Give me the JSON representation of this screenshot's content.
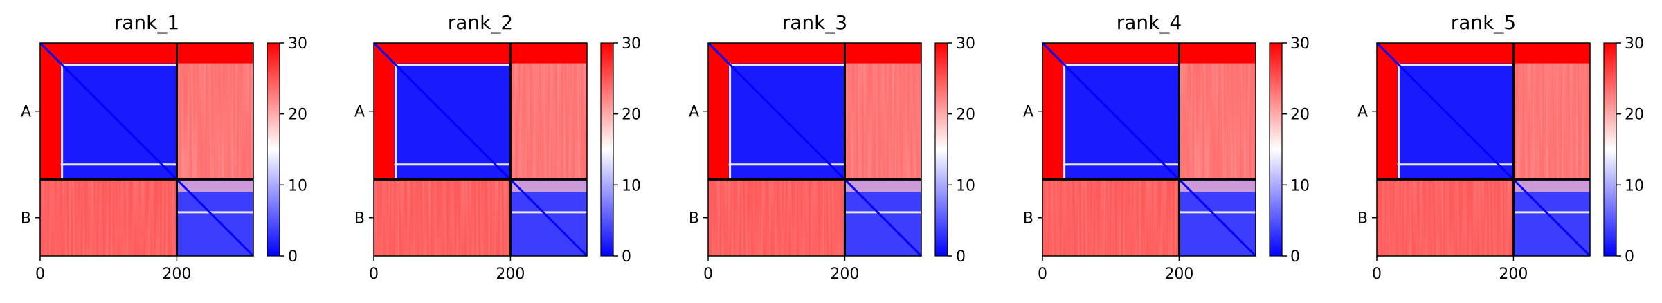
{
  "chart_data": {
    "type": "heatmap",
    "panels": [
      {
        "title": "rank_1"
      },
      {
        "title": "rank_2"
      },
      {
        "title": "rank_3"
      },
      {
        "title": "rank_4"
      },
      {
        "title": "rank_5"
      }
    ],
    "matrix_size": 312,
    "chain_boundary": 200,
    "chains": [
      {
        "label": "A",
        "start": 0,
        "end": 200
      },
      {
        "label": "B",
        "start": 200,
        "end": 312
      }
    ],
    "xticks": [
      0,
      200
    ],
    "colorbar": {
      "min": 0,
      "max": 30,
      "ticks": [
        0,
        10,
        20,
        30
      ]
    },
    "colormap": {
      "low": "#0000ff",
      "mid": "#ffffff",
      "high": "#ff0000"
    }
  }
}
